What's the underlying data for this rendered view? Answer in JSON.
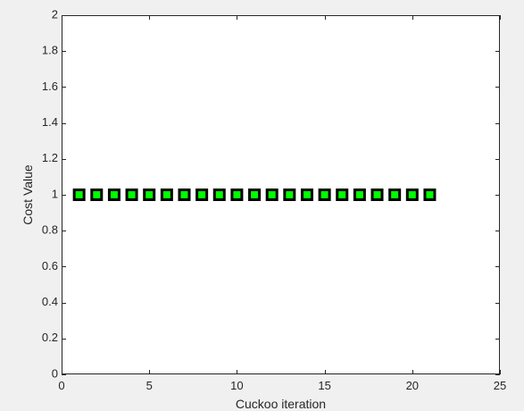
{
  "chart_data": {
    "type": "scatter",
    "title": "",
    "xlabel": "Cuckoo iteration",
    "ylabel": "Cost Value",
    "xlim": [
      0,
      25
    ],
    "ylim": [
      0,
      2
    ],
    "xticks": [
      0,
      5,
      10,
      15,
      20,
      25
    ],
    "yticks": [
      0,
      0.2,
      0.4,
      0.6,
      0.8,
      1,
      1.2,
      1.4,
      1.6,
      1.8,
      2
    ],
    "xtick_labels": [
      "0",
      "5",
      "10",
      "15",
      "20",
      "25"
    ],
    "ytick_labels": [
      "0",
      "0.2",
      "0.4",
      "0.6",
      "0.8",
      "1",
      "1.2",
      "1.4",
      "1.6",
      "1.8",
      "2"
    ],
    "grid": false,
    "series": [
      {
        "marker": "square",
        "marker_face": "#00ff00",
        "marker_edge": "#000000",
        "x": [
          1,
          2,
          3,
          4,
          5,
          6,
          7,
          8,
          9,
          10,
          11,
          12,
          13,
          14,
          15,
          16,
          17,
          18,
          19,
          20,
          21
        ],
        "y": [
          1,
          1,
          1,
          1,
          1,
          1,
          1,
          1,
          1,
          1,
          1,
          1,
          1,
          1,
          1,
          1,
          1,
          1,
          1,
          1,
          1
        ]
      }
    ]
  }
}
